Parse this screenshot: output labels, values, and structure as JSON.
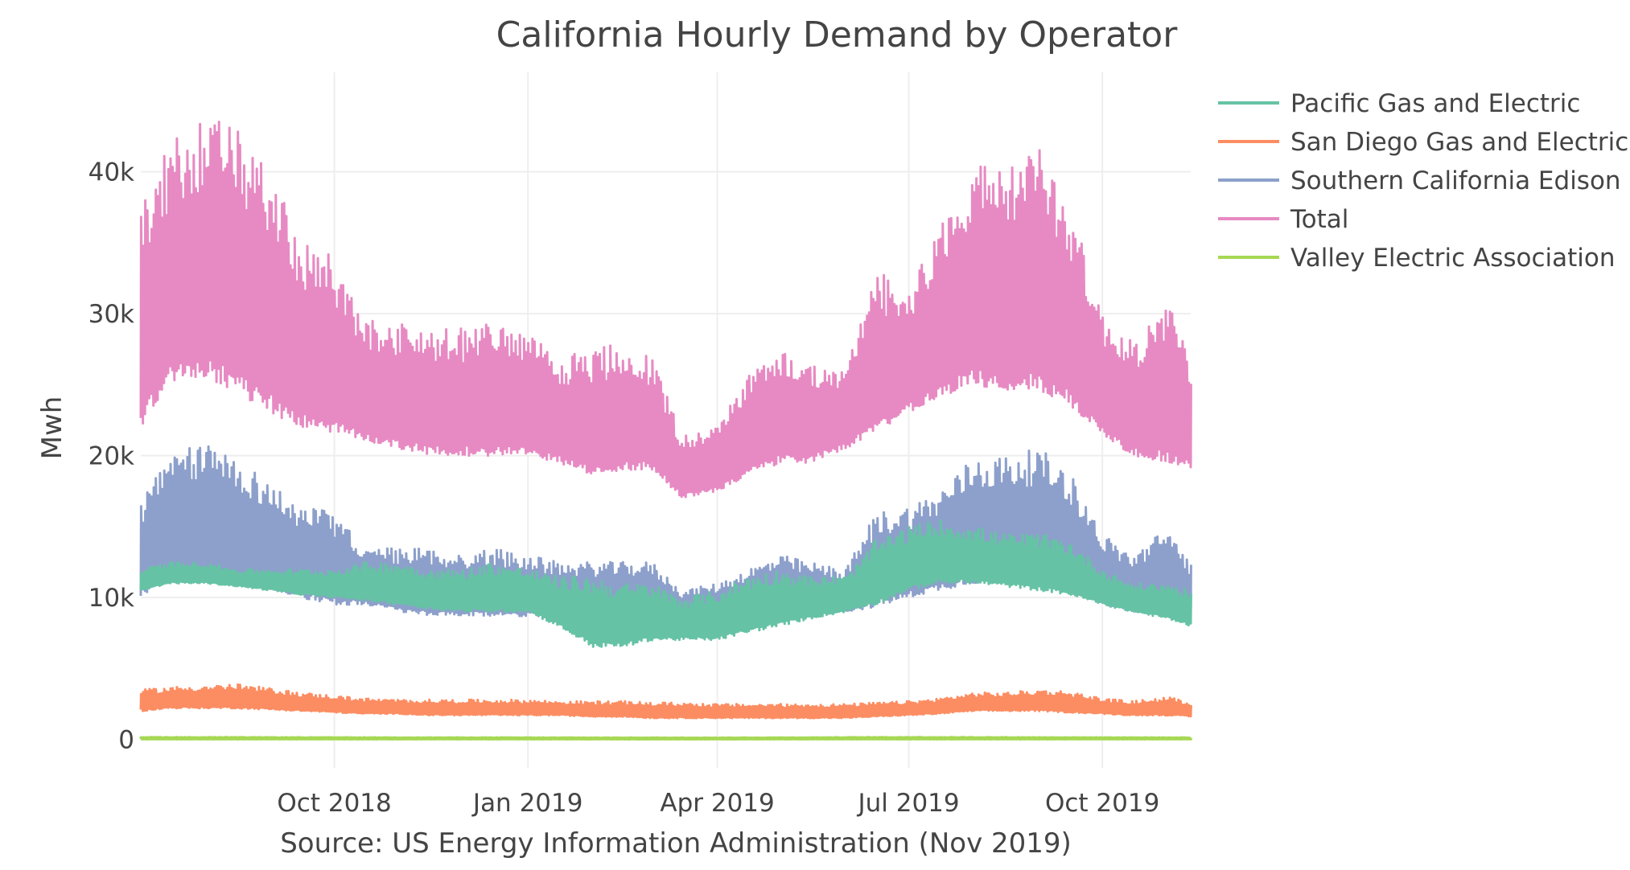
{
  "chart_data": {
    "type": "line",
    "title": "California Hourly Demand by Operator",
    "ylabel": "Mwh",
    "xlabel": "Source: US Energy Information Administration (Nov 2019)",
    "xlim": [
      "2018-07-01",
      "2019-11-12"
    ],
    "ylim": [
      -2000,
      47000
    ],
    "grid": true,
    "legend_position": "top-right",
    "y_ticks": [
      {
        "value": 0,
        "label": "0"
      },
      {
        "value": 10000,
        "label": "10k"
      },
      {
        "value": 20000,
        "label": "20k"
      },
      {
        "value": 30000,
        "label": "30k"
      },
      {
        "value": 40000,
        "label": "40k"
      }
    ],
    "x_ticks": [
      {
        "value": "2018-10-01",
        "label": "Oct 2018"
      },
      {
        "value": "2019-01-01",
        "label": "Jan 2019"
      },
      {
        "value": "2019-04-01",
        "label": "Apr 2019"
      },
      {
        "value": "2019-07-01",
        "label": "Jul 2019"
      },
      {
        "value": "2019-10-01",
        "label": "Oct 2019"
      }
    ],
    "series": [
      {
        "name": "Total",
        "color": "#e78ac3",
        "x": [
          "2018-07-01",
          "2018-07-15",
          "2018-08-01",
          "2018-08-15",
          "2018-09-01",
          "2018-09-15",
          "2018-10-01",
          "2018-10-15",
          "2018-11-01",
          "2018-11-15",
          "2018-12-01",
          "2018-12-15",
          "2019-01-01",
          "2019-01-15",
          "2019-02-01",
          "2019-02-15",
          "2019-03-01",
          "2019-03-15",
          "2019-04-01",
          "2019-04-15",
          "2019-05-01",
          "2019-05-15",
          "2019-06-01",
          "2019-06-15",
          "2019-07-01",
          "2019-07-15",
          "2019-08-01",
          "2019-08-15",
          "2019-09-01",
          "2019-09-15",
          "2019-10-01",
          "2019-10-15",
          "2019-11-01",
          "2019-11-12"
        ],
        "high": [
          38000,
          42000,
          44000,
          43000,
          40000,
          35000,
          34000,
          29500,
          29500,
          29000,
          29000,
          29500,
          28500,
          27000,
          27500,
          28000,
          27000,
          21500,
          22000,
          26000,
          27500,
          26500,
          26000,
          33000,
          32000,
          36000,
          41000,
          40000,
          42000,
          38000,
          30000,
          28000,
          31000,
          27000
        ],
        "low": [
          22000,
          25000,
          25500,
          24500,
          23000,
          22000,
          21500,
          21000,
          20500,
          20000,
          20000,
          20000,
          20000,
          19500,
          18500,
          19000,
          19000,
          17000,
          17500,
          18500,
          19500,
          19500,
          20500,
          21500,
          23000,
          24000,
          25000,
          24500,
          24500,
          23500,
          21500,
          20000,
          19500,
          19000
        ]
      },
      {
        "name": "Southern California Edison",
        "color": "#8da0cb",
        "x": [
          "2018-07-01",
          "2018-07-15",
          "2018-08-01",
          "2018-08-15",
          "2018-09-01",
          "2018-09-15",
          "2018-10-01",
          "2018-10-15",
          "2018-11-01",
          "2018-11-15",
          "2018-12-01",
          "2018-12-15",
          "2019-01-01",
          "2019-01-15",
          "2019-02-01",
          "2019-02-15",
          "2019-03-01",
          "2019-03-15",
          "2019-04-01",
          "2019-04-15",
          "2019-05-01",
          "2019-05-15",
          "2019-06-01",
          "2019-06-15",
          "2019-07-01",
          "2019-07-15",
          "2019-08-01",
          "2019-08-15",
          "2019-09-01",
          "2019-09-15",
          "2019-10-01",
          "2019-10-15",
          "2019-11-01",
          "2019-11-12"
        ],
        "high": [
          17000,
          20000,
          21000,
          20000,
          18000,
          16500,
          16000,
          13500,
          13500,
          13500,
          13000,
          13500,
          13000,
          12500,
          12500,
          12500,
          12500,
          10500,
          11000,
          12000,
          13000,
          12500,
          12000,
          16000,
          16500,
          17500,
          20000,
          20000,
          20500,
          19000,
          14500,
          13000,
          15000,
          12500
        ],
        "low": [
          10000,
          11500,
          11500,
          11000,
          10500,
          10000,
          9500,
          9500,
          9000,
          8700,
          8700,
          8700,
          8700,
          8600,
          8500,
          8600,
          8600,
          8300,
          8300,
          8600,
          8700,
          8700,
          9000,
          9300,
          10000,
          10500,
          11000,
          11000,
          11000,
          10500,
          9500,
          9000,
          8800,
          8500
        ]
      },
      {
        "name": "Pacific Gas and Electric",
        "color": "#66c2a5",
        "x": [
          "2018-07-01",
          "2018-07-15",
          "2018-08-01",
          "2018-08-15",
          "2018-09-01",
          "2018-09-15",
          "2018-10-01",
          "2018-10-15",
          "2018-11-01",
          "2018-11-15",
          "2018-12-01",
          "2018-12-15",
          "2019-01-01",
          "2019-01-15",
          "2019-02-01",
          "2019-02-15",
          "2019-03-01",
          "2019-03-15",
          "2019-04-01",
          "2019-04-15",
          "2019-05-01",
          "2019-05-15",
          "2019-06-01",
          "2019-06-15",
          "2019-07-01",
          "2019-07-15",
          "2019-08-01",
          "2019-08-15",
          "2019-09-01",
          "2019-09-15",
          "2019-10-01",
          "2019-10-15",
          "2019-11-01",
          "2019-11-12"
        ],
        "high": [
          12000,
          12500,
          12500,
          12000,
          12000,
          12000,
          12000,
          12500,
          12500,
          12000,
          12000,
          12500,
          12000,
          11500,
          11500,
          11000,
          11000,
          10000,
          10500,
          11500,
          12000,
          11500,
          11500,
          14000,
          15000,
          15500,
          15000,
          14500,
          14500,
          14000,
          12000,
          11000,
          11000,
          10500
        ],
        "low": [
          10500,
          11000,
          11000,
          10800,
          10500,
          10200,
          10000,
          9800,
          9500,
          9200,
          9000,
          9000,
          9000,
          8000,
          6500,
          6500,
          7000,
          7000,
          7000,
          7500,
          8000,
          8500,
          9000,
          9500,
          10500,
          11000,
          11000,
          10800,
          10500,
          10200,
          9500,
          9000,
          8500,
          8000
        ]
      },
      {
        "name": "San Diego Gas and Electric",
        "color": "#fc8d62",
        "x": [
          "2018-07-01",
          "2018-07-15",
          "2018-08-01",
          "2018-08-15",
          "2018-09-01",
          "2018-09-15",
          "2018-10-01",
          "2018-10-15",
          "2018-11-01",
          "2018-11-15",
          "2018-12-01",
          "2018-12-15",
          "2019-01-01",
          "2019-01-15",
          "2019-02-01",
          "2019-02-15",
          "2019-03-01",
          "2019-03-15",
          "2019-04-01",
          "2019-04-15",
          "2019-05-01",
          "2019-05-15",
          "2019-06-01",
          "2019-06-15",
          "2019-07-01",
          "2019-07-15",
          "2019-08-01",
          "2019-08-15",
          "2019-09-01",
          "2019-09-15",
          "2019-10-01",
          "2019-10-15",
          "2019-11-01",
          "2019-11-12"
        ],
        "high": [
          3500,
          3700,
          3800,
          3900,
          3600,
          3300,
          3100,
          2900,
          2800,
          2800,
          2800,
          2800,
          2800,
          2700,
          2700,
          2700,
          2600,
          2600,
          2500,
          2500,
          2500,
          2500,
          2500,
          2600,
          2700,
          2900,
          3300,
          3300,
          3500,
          3400,
          2900,
          2700,
          3000,
          2600
        ],
        "low": [
          2000,
          2200,
          2200,
          2200,
          2100,
          2000,
          1900,
          1800,
          1800,
          1700,
          1700,
          1700,
          1700,
          1700,
          1600,
          1600,
          1500,
          1500,
          1500,
          1500,
          1500,
          1500,
          1500,
          1600,
          1700,
          1800,
          2000,
          2000,
          2000,
          1900,
          1800,
          1700,
          1700,
          1600
        ]
      },
      {
        "name": "Valley Electric Association",
        "color": "#a6d854",
        "x": [
          "2018-07-01",
          "2018-10-01",
          "2019-01-01",
          "2019-04-01",
          "2019-07-01",
          "2019-10-01",
          "2019-11-12"
        ],
        "high": [
          150,
          130,
          120,
          110,
          150,
          130,
          120
        ],
        "low": [
          40,
          40,
          40,
          40,
          40,
          40,
          40
        ]
      }
    ],
    "legend_order": [
      "Pacific Gas and Electric",
      "San Diego Gas and Electric",
      "Southern California Edison",
      "Total",
      "Valley Electric Association"
    ]
  }
}
